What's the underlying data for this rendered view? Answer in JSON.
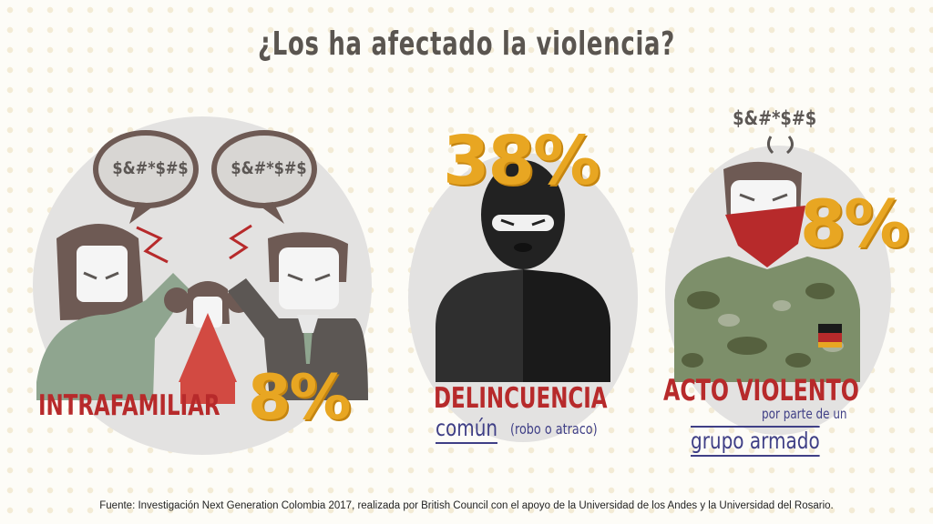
{
  "title": "¿Los ha afectado la violencia?",
  "panels": {
    "intrafamiliar": {
      "bubble_left": "$&#*$#$",
      "bubble_right": "$&#*$#$",
      "label": "INTRAFAMILIAR",
      "percent": "8%"
    },
    "delincuencia": {
      "percent": "38%",
      "label": "DELINCUENCIA",
      "sub_main": "común",
      "sub_note": "(robo o atraco)"
    },
    "acto_violento": {
      "curse": "$&#*$#$",
      "percent": "8%",
      "label": "ACTO VIOLENTO",
      "sub_line1": "por parte de un",
      "sub_line2": "grupo armado"
    }
  },
  "footer": "Fuente: Investigación Next Generation Colombia 2017, realizada por British Council con el apoyo de la Universidad de los Andes y la Universidad del Rosario.",
  "colors": {
    "accent_yellow": "#e8a622",
    "accent_red": "#b72a2b",
    "text_blue": "#3f3f86",
    "hair_brown": "#6e5a54",
    "suit_gray": "#5c5754",
    "shirt_green": "#8fa58f"
  }
}
